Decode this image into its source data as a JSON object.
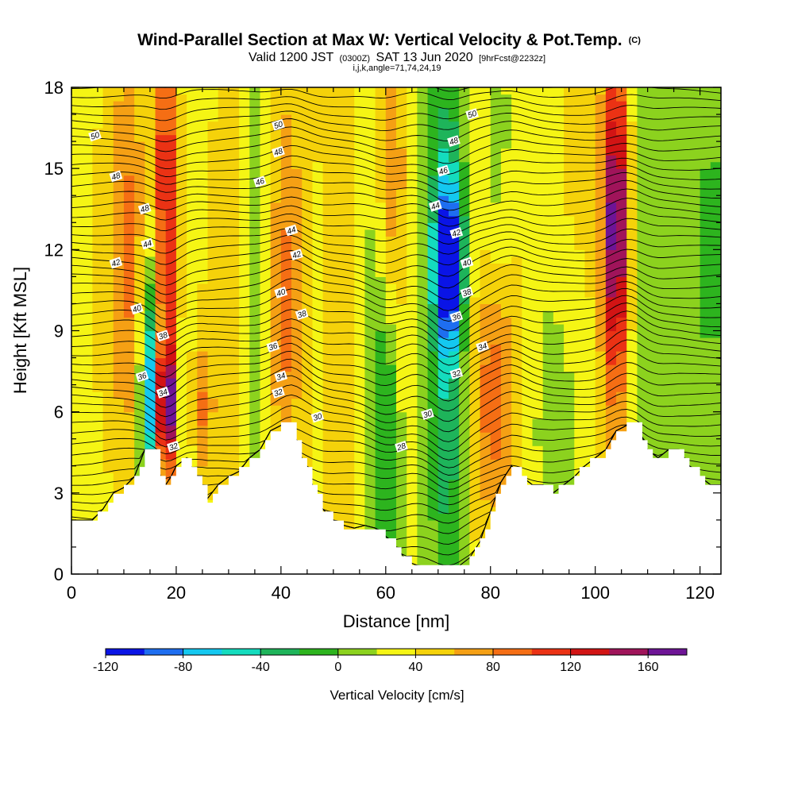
{
  "chart_data": {
    "type": "heatmap",
    "title": "Wind-Parallel Section at Max W: Vertical Velocity & Pot.Temp.",
    "title_mark": "(C)",
    "subtitle_parts": [
      "Valid 1200 JST",
      "(0300Z)",
      "SAT 13 Jun 2020",
      "[9hrFcst@2232z]"
    ],
    "subtitle2": "i,j,k,angle=71,74,24,19",
    "xlabel": "Distance [nm]",
    "ylabel": "Height [Kft MSL]",
    "xlim": [
      0,
      124
    ],
    "ylim": [
      0,
      18
    ],
    "x_ticks": [
      "0",
      "20",
      "40",
      "60",
      "80",
      "100",
      "120"
    ],
    "y_ticks": [
      "0",
      "3",
      "6",
      "9",
      "12",
      "15",
      "18"
    ],
    "colorbar": {
      "label": "Vertical Velocity [cm/s]",
      "range": [
        -120,
        180
      ],
      "step": 20,
      "tick_labels": [
        "-120",
        "-80",
        "-40",
        "0",
        "40",
        "80",
        "120",
        "160"
      ],
      "colors": [
        "#0a14e6",
        "#1e6ef0",
        "#14c8f0",
        "#14dcbe",
        "#1eb45a",
        "#2db41e",
        "#8cd21e",
        "#f5f514",
        "#f5d20a",
        "#f5a014",
        "#f56e14",
        "#eb3214",
        "#d21414",
        "#a0145a",
        "#6e1496"
      ]
    },
    "grid": false,
    "terrain_height_kft": [
      [
        0,
        2.0
      ],
      [
        4,
        2.0
      ],
      [
        6,
        2.4
      ],
      [
        8,
        3.0
      ],
      [
        10,
        3.2
      ],
      [
        12,
        3.6
      ],
      [
        14,
        4.6
      ],
      [
        16,
        4.6
      ],
      [
        17,
        3.6
      ],
      [
        18,
        3.3
      ],
      [
        19,
        3.6
      ],
      [
        20,
        4.0
      ],
      [
        22,
        4.3
      ],
      [
        24,
        3.6
      ],
      [
        26,
        2.8
      ],
      [
        28,
        3.3
      ],
      [
        30,
        3.6
      ],
      [
        32,
        3.8
      ],
      [
        34,
        4.3
      ],
      [
        36,
        4.6
      ],
      [
        38,
        5.3
      ],
      [
        40,
        5.5
      ],
      [
        42,
        5.5
      ],
      [
        44,
        4.3
      ],
      [
        46,
        3.3
      ],
      [
        48,
        2.4
      ],
      [
        50,
        2.0
      ],
      [
        52,
        1.8
      ],
      [
        54,
        1.7
      ],
      [
        56,
        1.8
      ],
      [
        58,
        1.7
      ],
      [
        60,
        1.4
      ],
      [
        62,
        1.0
      ],
      [
        64,
        0.5
      ],
      [
        66,
        0.3
      ],
      [
        68,
        0.3
      ],
      [
        70,
        0.3
      ],
      [
        72,
        0.3
      ],
      [
        74,
        0.3
      ],
      [
        76,
        0.6
      ],
      [
        78,
        1.2
      ],
      [
        80,
        2.3
      ],
      [
        82,
        3.4
      ],
      [
        84,
        4.0
      ],
      [
        86,
        3.6
      ],
      [
        88,
        3.3
      ],
      [
        90,
        3.3
      ],
      [
        92,
        3.0
      ],
      [
        94,
        3.3
      ],
      [
        96,
        3.6
      ],
      [
        98,
        4.0
      ],
      [
        100,
        4.3
      ],
      [
        102,
        4.6
      ],
      [
        104,
        5.3
      ],
      [
        106,
        5.5
      ],
      [
        108,
        5.5
      ],
      [
        110,
        4.6
      ],
      [
        112,
        4.3
      ],
      [
        114,
        4.6
      ],
      [
        116,
        4.6
      ],
      [
        118,
        4.0
      ],
      [
        120,
        3.6
      ],
      [
        122,
        3.3
      ],
      [
        124,
        3.3
      ]
    ],
    "velocity_features": [
      {
        "x": 0,
        "y": 10,
        "sx": 7,
        "sy": 20,
        "w": 25
      },
      {
        "x": 11,
        "y": 12,
        "sx": 3,
        "sy": 6,
        "w": 65
      },
      {
        "x": 18,
        "y": 13,
        "sx": 1.5,
        "sy": 10,
        "w": 100
      },
      {
        "x": 18,
        "y": 6.3,
        "sx": 1.2,
        "sy": 1.4,
        "w": 130
      },
      {
        "x": 15,
        "y": 6.3,
        "sx": 1.3,
        "sy": 2.5,
        "w": -100
      },
      {
        "x": 15,
        "y": 9.5,
        "sx": 1.5,
        "sy": 3,
        "w": -40
      },
      {
        "x": 25,
        "y": 6,
        "sx": 1.5,
        "sy": 2,
        "w": 55
      },
      {
        "x": 23,
        "y": 14,
        "sx": 3,
        "sy": 5,
        "w": 20
      },
      {
        "x": 30,
        "y": 10,
        "sx": 3,
        "sy": 12,
        "w": 35
      },
      {
        "x": 37,
        "y": 12,
        "sx": 3,
        "sy": 10,
        "w": -10
      },
      {
        "x": 40,
        "y": 10,
        "sx": 2,
        "sy": 6,
        "w": 55
      },
      {
        "x": 44,
        "y": 12,
        "sx": 3.5,
        "sy": 14,
        "w": 35
      },
      {
        "x": 47,
        "y": 8,
        "sx": 2,
        "sy": 8,
        "w": -25
      },
      {
        "x": 52,
        "y": 9,
        "sx": 4,
        "sy": 12,
        "w": 45
      },
      {
        "x": 57,
        "y": 14,
        "sx": 3,
        "sy": 8,
        "w": -20
      },
      {
        "x": 61,
        "y": 15,
        "sx": 2,
        "sy": 5,
        "w": 65
      },
      {
        "x": 60,
        "y": 6,
        "sx": 1.8,
        "sy": 4,
        "w": -50
      },
      {
        "x": 65,
        "y": 8,
        "sx": 2.5,
        "sy": 12,
        "w": 15
      },
      {
        "x": 72,
        "y": 11.5,
        "sx": 2,
        "sy": 2,
        "w": -110
      },
      {
        "x": 72,
        "y": 7,
        "sx": 2.5,
        "sy": 6,
        "w": -55
      },
      {
        "x": 72,
        "y": 15,
        "sx": 3,
        "sy": 4,
        "w": -30
      },
      {
        "x": 77,
        "y": 12,
        "sx": 2.5,
        "sy": 12,
        "w": 35
      },
      {
        "x": 81,
        "y": 6.5,
        "sx": 2.5,
        "sy": 3.5,
        "w": 65
      },
      {
        "x": 80,
        "y": 15,
        "sx": 3,
        "sy": 4,
        "w": -20
      },
      {
        "x": 86,
        "y": 9,
        "sx": 3,
        "sy": 14,
        "w": 25
      },
      {
        "x": 93,
        "y": 6,
        "sx": 4,
        "sy": 4,
        "w": -25
      },
      {
        "x": 96,
        "y": 13,
        "sx": 4,
        "sy": 10,
        "w": 30
      },
      {
        "x": 104,
        "y": 13,
        "sx": 1.8,
        "sy": 4,
        "w": 120
      },
      {
        "x": 104,
        "y": 10,
        "sx": 2.5,
        "sy": 12,
        "w": 45
      },
      {
        "x": 108,
        "y": 11,
        "sx": 2.5,
        "sy": 10,
        "w": -15
      },
      {
        "x": 112,
        "y": 10,
        "sx": 4,
        "sy": 12,
        "w": -5
      },
      {
        "x": 122,
        "y": 13,
        "sx": 3,
        "sy": 6,
        "w": -20
      },
      {
        "x": 120,
        "y": 17,
        "sx": 6,
        "sy": 2,
        "w": 5
      }
    ],
    "isentropes_pot_temp_C": [
      30,
      32,
      34,
      36,
      38,
      40,
      42,
      44,
      46,
      48,
      50
    ],
    "contour_labels": [
      {
        "text": "50",
        "x": 4.5,
        "y": 16.2
      },
      {
        "text": "48",
        "x": 8.5,
        "y": 14.7
      },
      {
        "text": "48",
        "x": 14,
        "y": 13.5
      },
      {
        "text": "44",
        "x": 14.5,
        "y": 12.2
      },
      {
        "text": "42",
        "x": 8.5,
        "y": 11.5
      },
      {
        "text": "40",
        "x": 12.5,
        "y": 9.8
      },
      {
        "text": "38",
        "x": 17.5,
        "y": 8.8
      },
      {
        "text": "36",
        "x": 13.5,
        "y": 7.3
      },
      {
        "text": "34",
        "x": 17.5,
        "y": 6.7
      },
      {
        "text": "32",
        "x": 19.5,
        "y": 4.7
      },
      {
        "text": "50",
        "x": 39.5,
        "y": 16.6
      },
      {
        "text": "48",
        "x": 39.5,
        "y": 15.6
      },
      {
        "text": "46",
        "x": 36,
        "y": 14.5
      },
      {
        "text": "44",
        "x": 42,
        "y": 12.7
      },
      {
        "text": "42",
        "x": 43,
        "y": 11.8
      },
      {
        "text": "40",
        "x": 40,
        "y": 10.4
      },
      {
        "text": "38",
        "x": 44,
        "y": 9.6
      },
      {
        "text": "36",
        "x": 38.5,
        "y": 8.4
      },
      {
        "text": "34",
        "x": 40,
        "y": 7.3
      },
      {
        "text": "32",
        "x": 39.5,
        "y": 6.7
      },
      {
        "text": "30",
        "x": 47,
        "y": 5.8
      },
      {
        "text": "28",
        "x": 63,
        "y": 4.7
      },
      {
        "text": "50",
        "x": 76.5,
        "y": 17.0
      },
      {
        "text": "48",
        "x": 73,
        "y": 16.0
      },
      {
        "text": "46",
        "x": 71,
        "y": 14.9
      },
      {
        "text": "44",
        "x": 69.5,
        "y": 13.6
      },
      {
        "text": "42",
        "x": 73.5,
        "y": 12.6
      },
      {
        "text": "40",
        "x": 75.5,
        "y": 11.5
      },
      {
        "text": "38",
        "x": 75.5,
        "y": 10.4
      },
      {
        "text": "36",
        "x": 73.5,
        "y": 9.5
      },
      {
        "text": "34",
        "x": 78.5,
        "y": 8.4
      },
      {
        "text": "32",
        "x": 73.5,
        "y": 7.4
      },
      {
        "text": "30",
        "x": 68,
        "y": 5.9
      }
    ]
  }
}
